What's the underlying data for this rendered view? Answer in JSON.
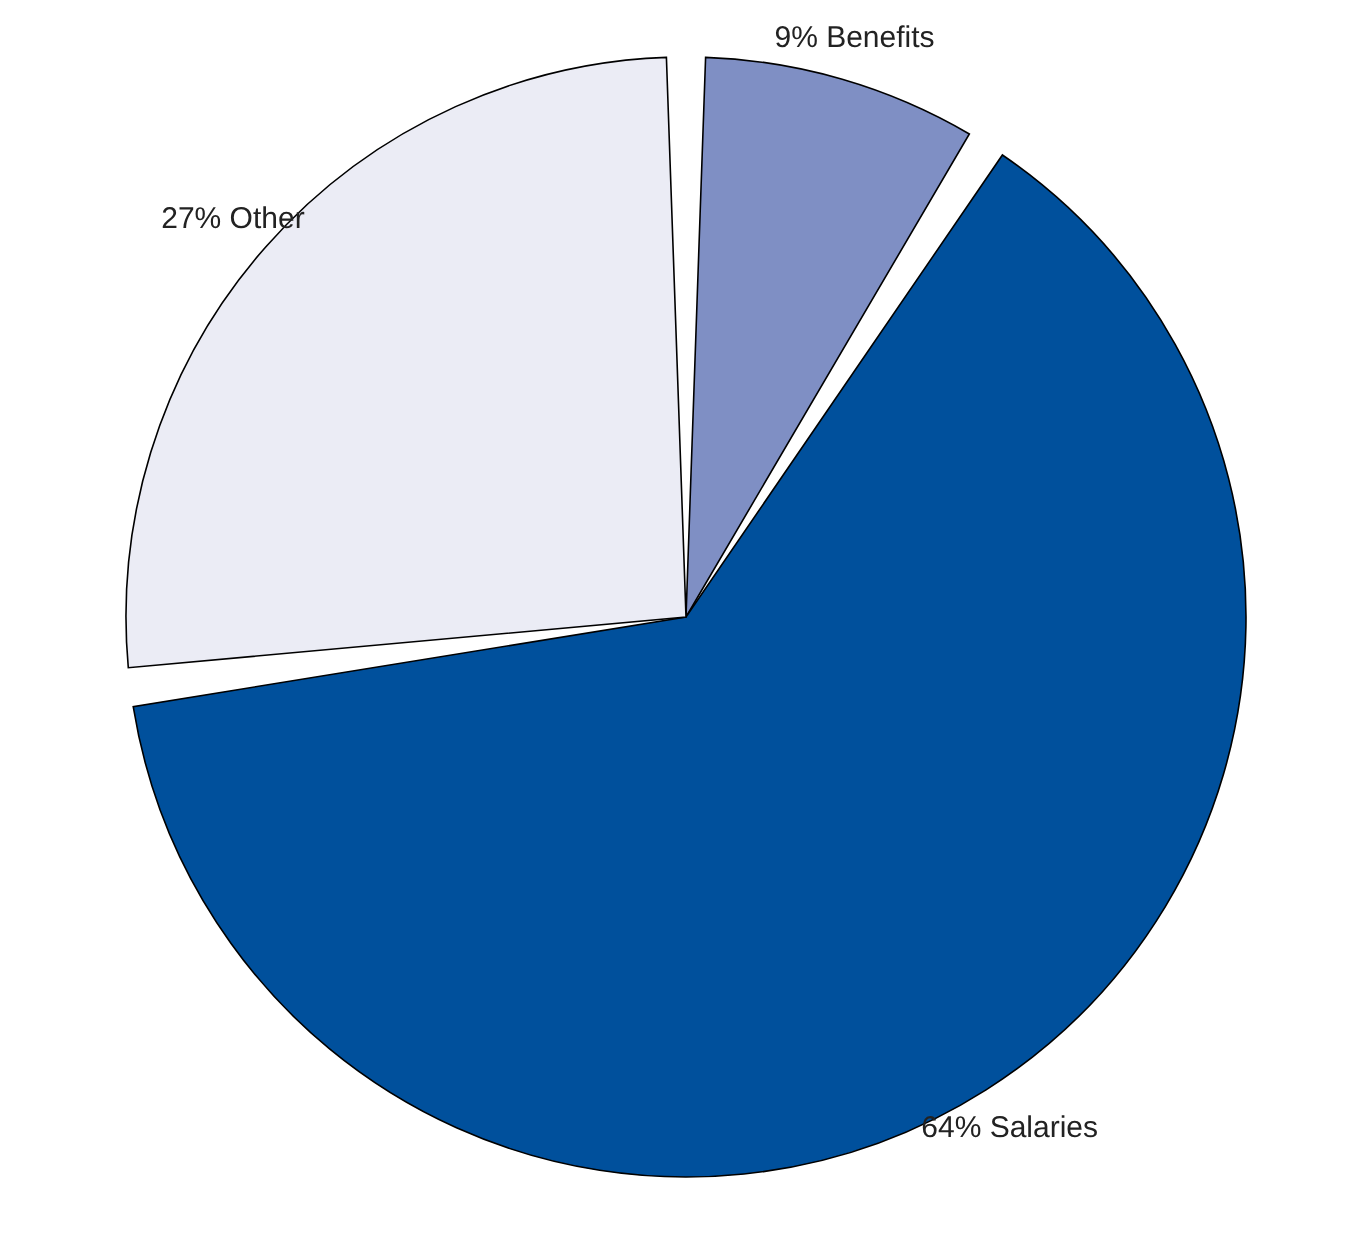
{
  "chart_data": {
    "type": "pie",
    "categories": [
      "Benefits",
      "Salaries",
      "Other"
    ],
    "values": [
      9,
      64,
      27
    ],
    "value_labels": [
      "9%",
      "64%",
      "27%"
    ],
    "colors": [
      "#7f8fc4",
      "#00509c",
      "#ebecf5"
    ]
  }
}
